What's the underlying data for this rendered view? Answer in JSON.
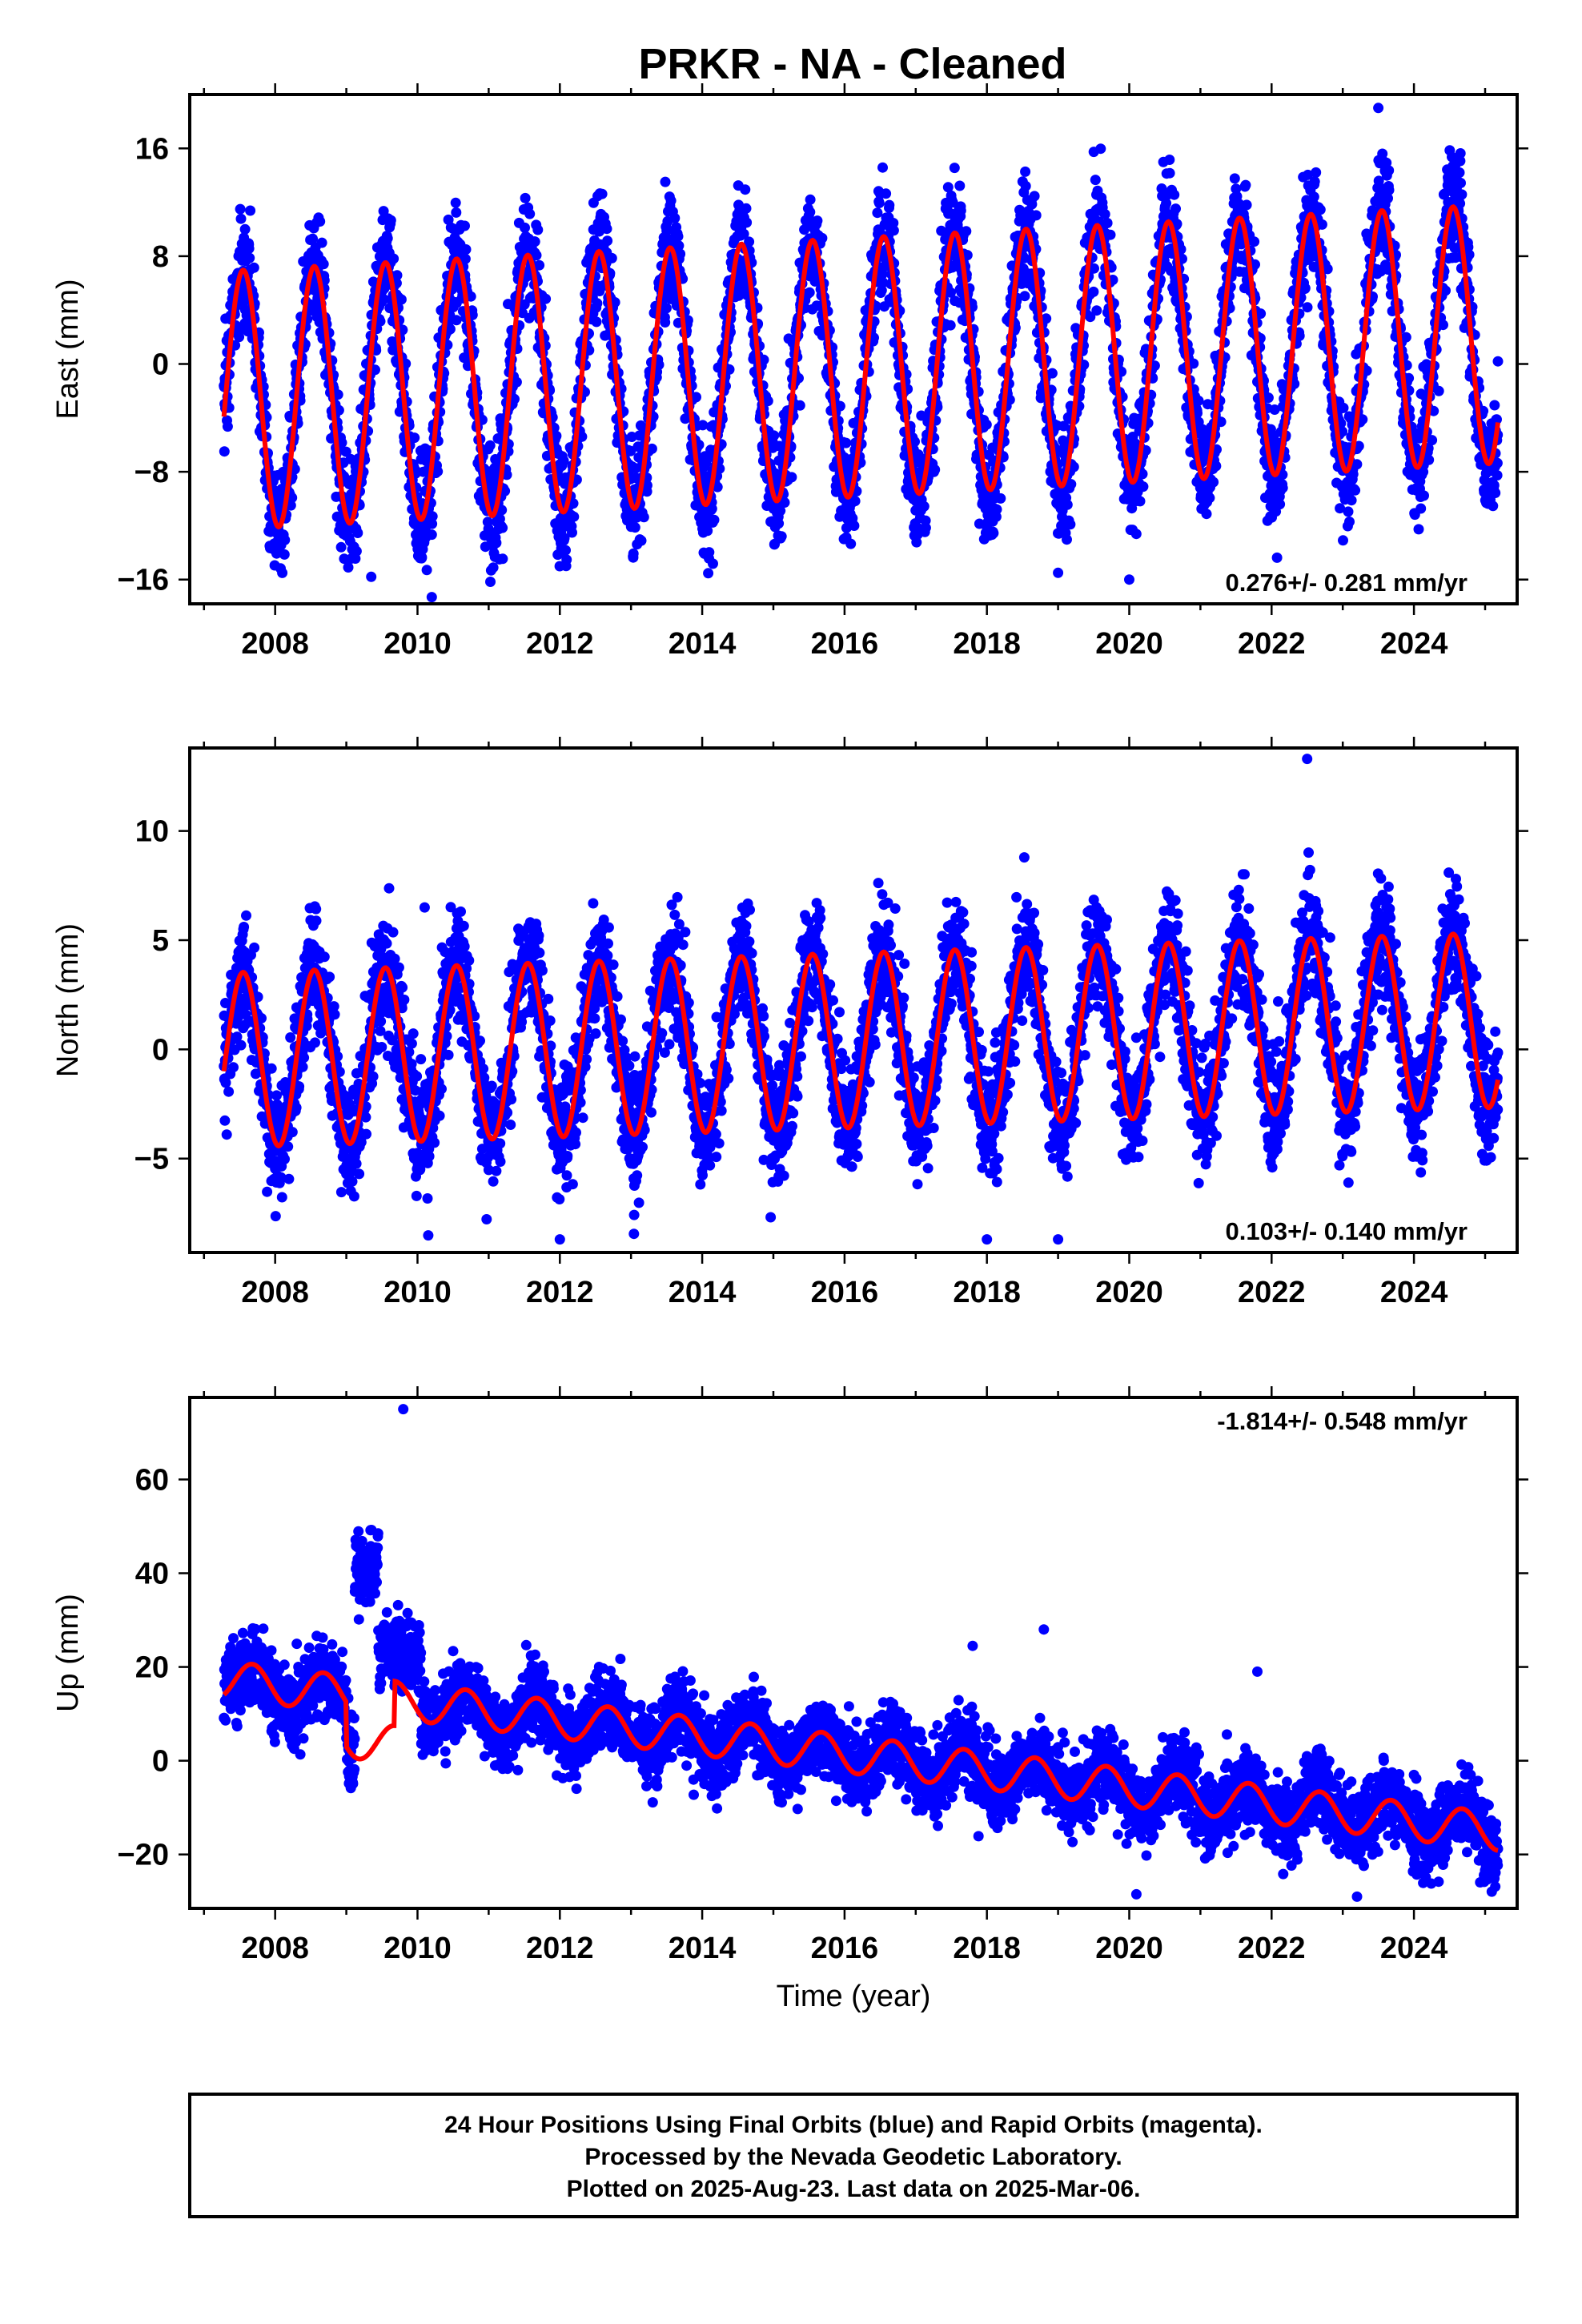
{
  "title": "PRKR  - NA - Cleaned",
  "footer": {
    "line1": "24 Hour Positions Using Final Orbits (blue) and Rapid Orbits (magenta).",
    "line2": "Processed by the Nevada Geodetic Laboratory.",
    "line3": "Plotted on 2025-Aug-23. Last data on 2025-Mar-06."
  },
  "colors": {
    "data_points": "#0000ff",
    "model_fit": "#ff0000",
    "frame": "#000000"
  },
  "chart_data": [
    {
      "type": "scatter",
      "ylabel": "East (mm)",
      "xlabel": "",
      "xlim": [
        2006.8,
        2025.45
      ],
      "ylim": [
        -17.8,
        20.0
      ],
      "xticks": [
        2008,
        2010,
        2012,
        2014,
        2016,
        2018,
        2020,
        2022,
        2024
      ],
      "yticks": [
        -16,
        -8,
        0,
        8,
        16
      ],
      "ytick_labels": [
        "−16",
        "−8",
        "0",
        "8",
        "16"
      ],
      "rate_label": "0.276+/- 0.281 mm/yr",
      "data_range": [
        2007.28,
        2025.18
      ],
      "series": [
        {
          "kind": "points",
          "color": "#0000ff",
          "density_per_year": 300,
          "scatter_sd": 2.1,
          "notable_points": [
            [
              2009.35,
              -15.8
            ],
            [
              2010.2,
              -17.3
            ],
            [
              2019.0,
              -15.5
            ],
            [
              2020.0,
              -16.0
            ],
            [
              2023.5,
              19.0
            ]
          ]
        },
        {
          "kind": "model",
          "color": "#ff0000",
          "offset": -0.3,
          "rate": 0.276,
          "ref_epoch": 2016.0,
          "annual_amplitude": 9.6,
          "annual_amplitude_trend": 0.0,
          "annual_peak": 0.55,
          "semiannual_amplitude": 0.0,
          "semiannual_peak": 0.0
        }
      ]
    },
    {
      "type": "scatter",
      "ylabel": "North (mm)",
      "xlabel": "",
      "xlim": [
        2006.8,
        2025.45
      ],
      "ylim": [
        -9.3,
        13.8
      ],
      "xticks": [
        2008,
        2010,
        2012,
        2014,
        2016,
        2018,
        2020,
        2022,
        2024
      ],
      "yticks": [
        -5,
        0,
        5,
        10
      ],
      "ytick_labels": [
        "−5",
        "0",
        "5",
        "10"
      ],
      "rate_label": "0.103+/- 0.140 mm/yr",
      "data_range": [
        2007.28,
        2025.18
      ],
      "series": [
        {
          "kind": "points",
          "color": "#0000ff",
          "density_per_year": 300,
          "scatter_sd": 1.3,
          "notable_points": [
            [
              2010.1,
              6.5
            ],
            [
              2012.0,
              -8.7
            ],
            [
              2018.0,
              -8.7
            ],
            [
              2019.0,
              -8.7
            ],
            [
              2022.5,
              13.3
            ]
          ]
        },
        {
          "kind": "model",
          "color": "#ff0000",
          "offset": 0.4,
          "rate": 0.103,
          "ref_epoch": 2016.0,
          "annual_amplitude": 4.0,
          "annual_amplitude_trend": 0.0,
          "annual_peak": 0.55,
          "semiannual_amplitude": 0.0,
          "semiannual_peak": 0.0
        }
      ]
    },
    {
      "type": "scatter",
      "ylabel": "Up (mm)",
      "xlabel": "Time (year)",
      "xlim": [
        2006.8,
        2025.45
      ],
      "ylim": [
        -31.5,
        77.5
      ],
      "xticks": [
        2008,
        2010,
        2012,
        2014,
        2016,
        2018,
        2020,
        2022,
        2024
      ],
      "yticks": [
        -20,
        0,
        20,
        40,
        60
      ],
      "ytick_labels": [
        "−20",
        "0",
        "20",
        "40",
        "60"
      ],
      "rate_label": "-1.814+/- 0.548 mm/yr",
      "data_range": [
        2007.28,
        2025.18
      ],
      "series": [
        {
          "kind": "points",
          "color": "#0000ff",
          "density_per_year": 300,
          "scatter_sd": 4.0,
          "excursions": [
            {
              "from": 2009.12,
              "to": 2009.45,
              "y": 41.0,
              "sd": 3.5
            },
            {
              "from": 2009.45,
              "to": 2010.05,
              "y": 23.0,
              "sd": 4.0
            }
          ],
          "notable_points": [
            [
              2009.8,
              75.0
            ],
            [
              2017.8,
              24.5
            ],
            [
              2018.8,
              28.0
            ],
            [
              2021.8,
              19.0
            ],
            [
              2020.1,
              -28.5
            ],
            [
              2023.2,
              -29.0
            ]
          ]
        },
        {
          "kind": "model",
          "color": "#ff0000",
          "offset": 1.5,
          "rate": -1.814,
          "ref_epoch": 2016.0,
          "annual_amplitude": 4.0,
          "annual_amplitude_trend": 0.0,
          "annual_peak": 0.68,
          "semiannual_amplitude": 0.0,
          "semiannual_peak": 0.0,
          "steps": [
            {
              "epoch": 2009.0,
              "value": -9.5
            },
            {
              "epoch": 2009.68,
              "value": 9.5
            }
          ]
        }
      ]
    }
  ]
}
